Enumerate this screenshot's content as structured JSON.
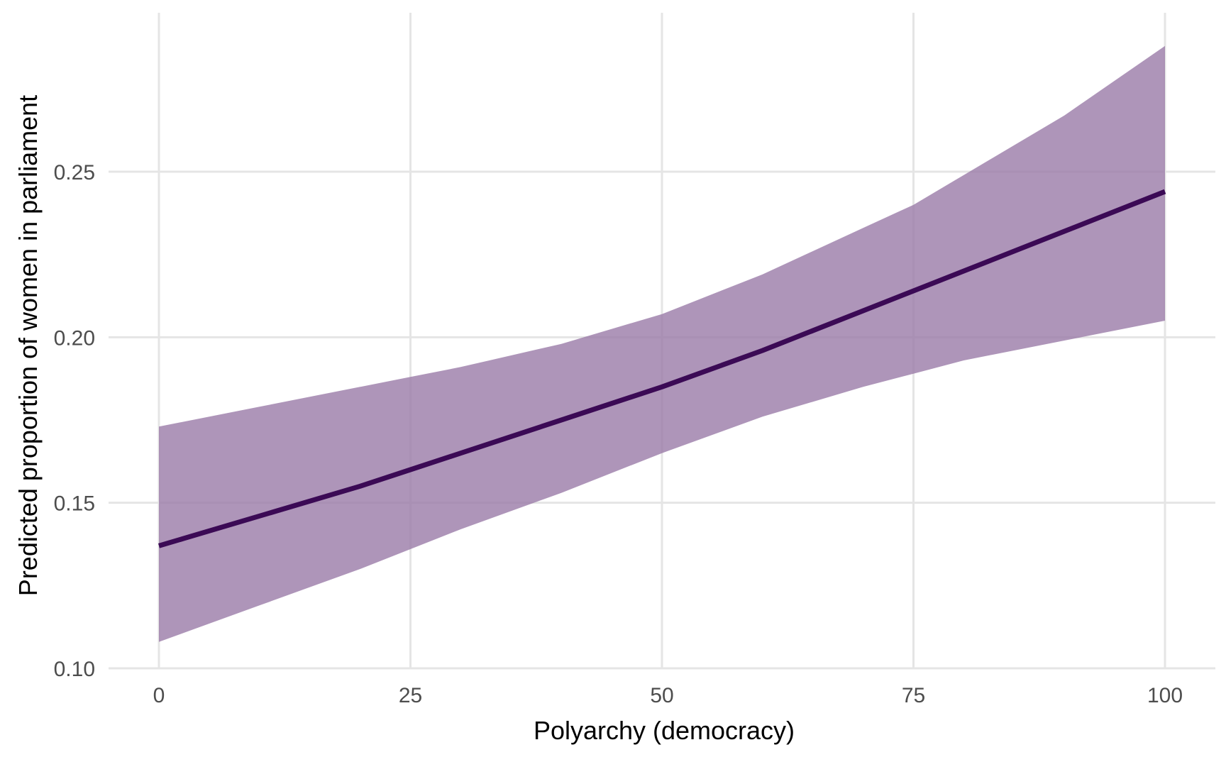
{
  "chart_data": {
    "type": "line",
    "title": "",
    "xlabel": "Polyarchy (democracy)",
    "ylabel": "Predicted proportion of women in parliament",
    "xlim": [
      -10,
      105
    ],
    "ylim": [
      0.1,
      0.29
    ],
    "x_ticks": [
      0,
      25,
      50,
      75,
      100
    ],
    "x_tick_labels": [
      "0",
      "25",
      "50",
      "75",
      "100"
    ],
    "y_ticks": [
      0.1,
      0.15,
      0.2,
      0.25
    ],
    "y_tick_labels": [
      "0.10",
      "0.15",
      "0.20",
      "0.25"
    ],
    "grid": true,
    "legend": "none",
    "colors": {
      "line": "#3b0a55",
      "ribbon": "#9a7aa8",
      "grid": "#e5e5e5"
    },
    "x": [
      0,
      10,
      20,
      25,
      30,
      40,
      50,
      60,
      70,
      75,
      80,
      90,
      100
    ],
    "series": [
      {
        "values": [
          0.137,
          0.146,
          0.155,
          0.16,
          0.165,
          0.175,
          0.185,
          0.196,
          0.208,
          0.214,
          0.22,
          0.232,
          0.244
        ],
        "lower": [
          0.108,
          0.119,
          0.13,
          0.136,
          0.142,
          0.153,
          0.165,
          0.176,
          0.185,
          0.189,
          0.193,
          0.199,
          0.205
        ],
        "upper": [
          0.173,
          0.179,
          0.185,
          0.188,
          0.191,
          0.198,
          0.207,
          0.219,
          0.233,
          0.24,
          0.249,
          0.267,
          0.288
        ]
      }
    ]
  }
}
